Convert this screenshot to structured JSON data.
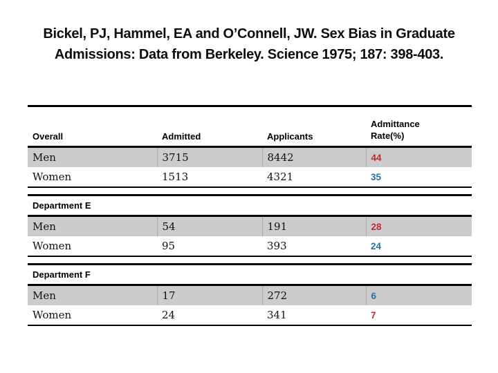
{
  "title": {
    "line1": "Bickel, PJ, Hammel, EA and O’Connell, JW. Sex Bias in Graduate",
    "line2": "Admissions: Data from Berkeley. Science 1975; 187: 398-403."
  },
  "colors": {
    "rate_higher": "#c02830",
    "rate_lower": "#1f74a0",
    "shaded_row": "#cccccc",
    "border": "#000000"
  },
  "tables": [
    {
      "section_label": "Overall",
      "columns": [
        "Overall",
        "Admitted",
        "Applicants",
        "Admittance\nRate(%)"
      ],
      "rows": [
        {
          "label": "Men",
          "admitted": "3715",
          "applicants": "8442",
          "rate": "44",
          "rate_color": "#c02830"
        },
        {
          "label": "Women",
          "admitted": "1513",
          "applicants": "4321",
          "rate": "35",
          "rate_color": "#1f74a0"
        }
      ]
    },
    {
      "section_label": "Department E",
      "rows": [
        {
          "label": "Men",
          "admitted": "54",
          "applicants": "191",
          "rate": "28",
          "rate_color": "#c02830"
        },
        {
          "label": "Women",
          "admitted": "95",
          "applicants": "393",
          "rate": "24",
          "rate_color": "#1f74a0"
        }
      ]
    },
    {
      "section_label": "Department F",
      "rows": [
        {
          "label": "Men",
          "admitted": "17",
          "applicants": "272",
          "rate": "6",
          "rate_color": "#1f74a0"
        },
        {
          "label": "Women",
          "admitted": "24",
          "applicants": "341",
          "rate": "7",
          "rate_color": "#c02830"
        }
      ]
    }
  ]
}
